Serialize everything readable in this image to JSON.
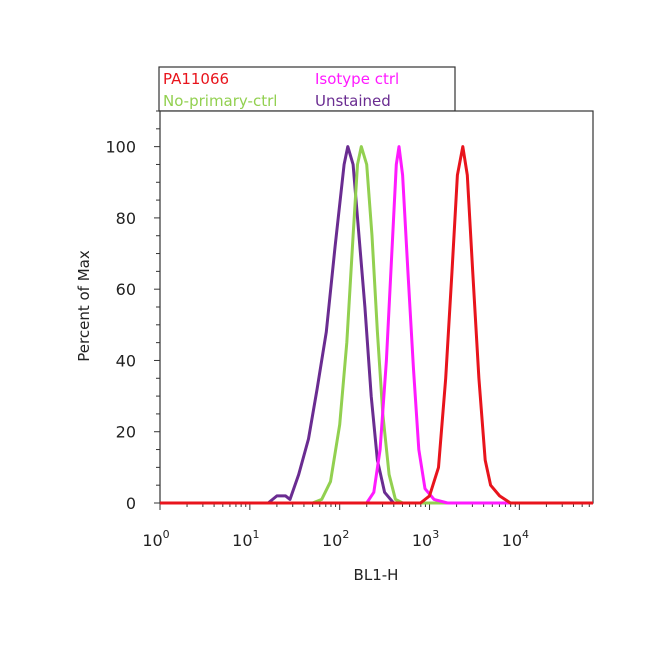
{
  "chart_data": {
    "type": "line",
    "title": "",
    "xlabel": "BL1-H",
    "ylabel": "Percent of Max",
    "xscale": "log",
    "xlim": [
      1,
      66000
    ],
    "ylim": [
      0,
      110
    ],
    "x_ticks": [
      {
        "base": "10",
        "exp": "0",
        "value": 1
      },
      {
        "base": "10",
        "exp": "1",
        "value": 10
      },
      {
        "base": "10",
        "exp": "2",
        "value": 100
      },
      {
        "base": "10",
        "exp": "3",
        "value": 1000
      },
      {
        "base": "10",
        "exp": "4",
        "value": 10000
      }
    ],
    "y_ticks": [
      "0",
      "20",
      "40",
      "60",
      "80",
      "100"
    ],
    "grid": false,
    "legend_position": "top-left, above plot",
    "series": [
      {
        "name": "Unstained",
        "color": "#6a2c91",
        "x": [
          1,
          16,
          20,
          25,
          28,
          35,
          45,
          56,
          71,
          89,
          112,
          123,
          141,
          158,
          191,
          224,
          263,
          316,
          398,
          66000
        ],
        "y": [
          0,
          0,
          2,
          2,
          1,
          8,
          18,
          32,
          48,
          72,
          95,
          100,
          95,
          80,
          55,
          30,
          12,
          3,
          0,
          0
        ]
      },
      {
        "name": "No-primary-ctrl",
        "color": "#92d050",
        "x": [
          1,
          50,
          63,
          79,
          100,
          120,
          141,
          158,
          174,
          200,
          229,
          263,
          302,
          355,
          417,
          501,
          66000
        ],
        "y": [
          0,
          0,
          1,
          6,
          22,
          45,
          75,
          95,
          100,
          95,
          75,
          48,
          25,
          8,
          1,
          0,
          0
        ]
      },
      {
        "name": "Isotype ctrl",
        "color": "#ff1aff",
        "x": [
          1,
          200,
          240,
          282,
          331,
          380,
          427,
          457,
          501,
          575,
          661,
          759,
          891,
          1122,
          1585,
          66000
        ],
        "y": [
          0,
          0,
          3,
          15,
          40,
          70,
          95,
          100,
          92,
          65,
          38,
          15,
          4,
          1,
          0,
          0
        ]
      },
      {
        "name": "PA11066",
        "color": "#e8141c",
        "x": [
          1,
          794,
          1000,
          1259,
          1514,
          1778,
          2042,
          2344,
          2630,
          3020,
          3548,
          4169,
          4786,
          6026,
          7943,
          66000
        ],
        "y": [
          0,
          0,
          2,
          10,
          35,
          65,
          92,
          100,
          92,
          65,
          35,
          12,
          5,
          2,
          0,
          0
        ]
      }
    ],
    "legend": [
      {
        "label": "PA11066",
        "color": "#e8141c"
      },
      {
        "label": "Isotype ctrl",
        "color": "#ff1aff"
      },
      {
        "label": "No-primary-ctrl",
        "color": "#92d050"
      },
      {
        "label": "Unstained",
        "color": "#6a2c91"
      }
    ]
  }
}
